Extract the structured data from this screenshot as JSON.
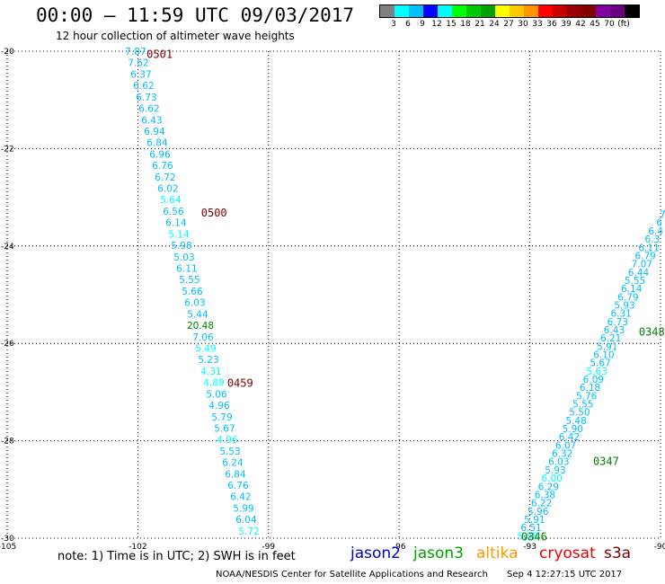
{
  "header": {
    "title": "00:00 – 11:59 UTC 09/03/2017",
    "subtitle": "12 hour collection of altimeter wave heights"
  },
  "legend": {
    "colors": [
      "#808080",
      "#00ffff",
      "#00bfff",
      "#0000ff",
      "#00ffff",
      "#00ff00",
      "#00c800",
      "#00a000",
      "#ffff00",
      "#ffc800",
      "#ff9600",
      "#ff0000",
      "#c80000",
      "#960000",
      "#800000",
      "#8000a0",
      "#6a0080",
      "#000000"
    ],
    "labels": [
      "3",
      "6",
      "9",
      "12",
      "15",
      "18",
      "21",
      "24",
      "27",
      "30",
      "33",
      "36",
      "39",
      "42",
      "45",
      "70",
      "(ft)"
    ]
  },
  "map": {
    "lon_range": [
      -105,
      -90
    ],
    "lat_range": [
      -30,
      -20
    ],
    "lon_ticks": [
      -105,
      -102,
      -99,
      -96,
      -93,
      -90
    ],
    "lat_ticks": [
      -20,
      -22,
      -24,
      -26,
      -28,
      -30
    ],
    "lon_tick_labels": [
      "-105",
      "-102",
      "-99",
      "-96",
      "-93",
      "-90"
    ],
    "lat_tick_labels": [
      "-20",
      "-22",
      "-24",
      "-26",
      "-28",
      "-30"
    ]
  },
  "tracks": [
    {
      "name": "cryosat track 1",
      "start": [
        -102.05,
        -20.0
      ],
      "end": [
        -99.45,
        -29.85
      ],
      "values": [
        "7.87",
        "7.62",
        "6.37",
        "6.62",
        "6.73",
        "6.62",
        "6.43",
        "6.94",
        "6.84",
        "6.96",
        "6.76",
        "6.72",
        "6.02",
        "5.64",
        "6.56",
        "6.14",
        "5.14",
        "5.98",
        "5.03",
        "6.11",
        "5.55",
        "5.66",
        "6.03",
        "5.44",
        "20.48",
        "7.06",
        "5.49",
        "5.23",
        "4.31",
        "4.89",
        "5.06",
        "4.96",
        "5.79",
        "5.67",
        "4.96",
        "5.53",
        "6.24",
        "6.84",
        "6.76",
        "6.42",
        "5.99",
        "6.04",
        "5.72"
      ],
      "colors": [
        "#00bfff",
        "#00bfff",
        "#00bfff",
        "#00bfff",
        "#00bfff",
        "#00bfff",
        "#00bfff",
        "#00bfff",
        "#00bfff",
        "#00bfff",
        "#00bfff",
        "#00bfff",
        "#00bfff",
        "#00ffff",
        "#00bfff",
        "#00bfff",
        "#00ffff",
        "#00bfff",
        "#00bfff",
        "#00bfff",
        "#00bfff",
        "#00bfff",
        "#00bfff",
        "#00bfff",
        "#008000",
        "#00bfff",
        "#00ffff",
        "#00bfff",
        "#00ffff",
        "#00ffff",
        "#00bfff",
        "#00bfff",
        "#00bfff",
        "#00bfff",
        "#00ffff",
        "#00bfff",
        "#00bfff",
        "#00bfff",
        "#00bfff",
        "#00bfff",
        "#00bfff",
        "#00bfff",
        "#00ffff"
      ],
      "time_labels": [
        {
          "text": "0501",
          "lon": -101.5,
          "lat": -20.05,
          "color": "#800000"
        },
        {
          "text": "0500",
          "lon": -100.25,
          "lat": -23.3,
          "color": "#800000"
        },
        {
          "text": "0459",
          "lon": -99.65,
          "lat": -26.8,
          "color": "#800000"
        }
      ]
    },
    {
      "name": "jason3 track 1",
      "start": [
        -89.95,
        -23.35
      ],
      "end": [
        -93.05,
        -29.95
      ],
      "values": [
        "7",
        "6",
        "6.4",
        "6.3",
        "6.11",
        "6.79",
        "7.07",
        "6.44",
        "5.55",
        "6.14",
        "6.79",
        "5.93",
        "6.31",
        "6.73",
        "6.43",
        "6.21",
        "5.91",
        "6.10",
        "5.67",
        "5.63",
        "6.09",
        "6.18",
        "5.76",
        "5.55",
        "5.50",
        "5.48",
        "5.90",
        "6.42",
        "6.07",
        "6.32",
        "6.03",
        "5.93",
        "6.00",
        "6.29",
        "6.38",
        "6.22",
        "5.96",
        "5.91",
        "6.51",
        "5.88"
      ],
      "colors": [
        "#00bfff",
        "#00bfff",
        "#00bfff",
        "#00bfff",
        "#00bfff",
        "#00bfff",
        "#00bfff",
        "#00bfff",
        "#00bfff",
        "#00bfff",
        "#00bfff",
        "#00bfff",
        "#00bfff",
        "#00bfff",
        "#00bfff",
        "#00bfff",
        "#00bfff",
        "#00bfff",
        "#00bfff",
        "#00ffff",
        "#00bfff",
        "#00bfff",
        "#00bfff",
        "#00bfff",
        "#00bfff",
        "#00bfff",
        "#00bfff",
        "#00bfff",
        "#00bfff",
        "#00bfff",
        "#00bfff",
        "#00bfff",
        "#00ffff",
        "#00bfff",
        "#00bfff",
        "#00bfff",
        "#00bfff",
        "#00bfff",
        "#00bfff",
        "#00ffff"
      ],
      "time_labels": [
        {
          "text": "0348",
          "lon": -90.2,
          "lat": -25.75,
          "color": "#008000"
        },
        {
          "text": "0347",
          "lon": -91.25,
          "lat": -28.4,
          "color": "#008000"
        },
        {
          "text": "0346",
          "lon": -92.9,
          "lat": -29.95,
          "color": "#008000"
        }
      ]
    }
  ],
  "footer": {
    "note": "note: 1) Time is in UTC; 2) SWH is in feet",
    "satellites": [
      {
        "name": "jason2",
        "color": "#0000cc"
      },
      {
        "name": "jason3",
        "color": "#00a000"
      },
      {
        "name": "altika",
        "color": "#ff9900"
      },
      {
        "name": "cryosat",
        "color": "#ee0000"
      },
      {
        "name": "s3a",
        "color": "#800000"
      }
    ],
    "credit": "NOAA/NESDIS Center for Satellite Applications and Research",
    "timestamp": "Sep  4 12:27:15 UTC 2017"
  }
}
